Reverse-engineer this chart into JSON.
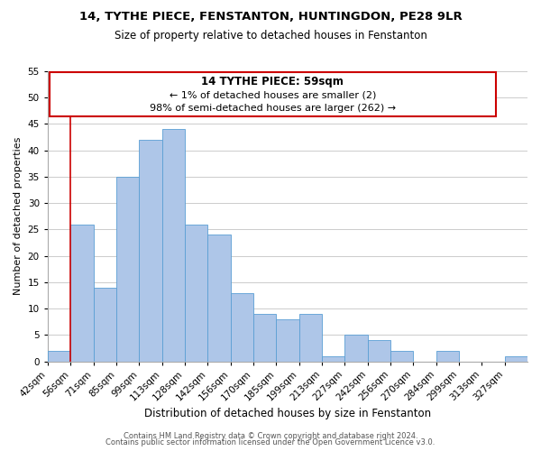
{
  "title1": "14, TYTHE PIECE, FENSTANTON, HUNTINGDON, PE28 9LR",
  "title2": "Size of property relative to detached houses in Fenstanton",
  "xlabel": "Distribution of detached houses by size in Fenstanton",
  "ylabel": "Number of detached properties",
  "bin_labels": [
    "42sqm",
    "56sqm",
    "71sqm",
    "85sqm",
    "99sqm",
    "113sqm",
    "128sqm",
    "142sqm",
    "156sqm",
    "170sqm",
    "185sqm",
    "199sqm",
    "213sqm",
    "227sqm",
    "242sqm",
    "256sqm",
    "270sqm",
    "284sqm",
    "299sqm",
    "313sqm",
    "327sqm"
  ],
  "bar_heights": [
    2,
    26,
    14,
    35,
    42,
    44,
    26,
    24,
    13,
    9,
    8,
    9,
    1,
    5,
    4,
    2,
    0,
    2,
    0,
    0,
    1
  ],
  "bar_color": "#aec6e8",
  "bar_edge_color": "#5a9fd4",
  "annotation_text_line1": "14 TYTHE PIECE: 59sqm",
  "annotation_text_line2": "← 1% of detached houses are smaller (2)",
  "annotation_text_line3": "98% of semi-detached houses are larger (262) →",
  "annotation_border_color": "#cc0000",
  "property_line_color": "#cc0000",
  "property_line_x": 1.0,
  "ylim": [
    0,
    55
  ],
  "yticks": [
    0,
    5,
    10,
    15,
    20,
    25,
    30,
    35,
    40,
    45,
    50,
    55
  ],
  "footer1": "Contains HM Land Registry data © Crown copyright and database right 2024.",
  "footer2": "Contains public sector information licensed under the Open Government Licence v3.0.",
  "background_color": "#ffffff",
  "grid_color": "#cccccc",
  "title1_fontsize": 9.5,
  "title2_fontsize": 8.5,
  "xlabel_fontsize": 8.5,
  "ylabel_fontsize": 8.0,
  "tick_fontsize": 7.5,
  "footer_fontsize": 6.0
}
